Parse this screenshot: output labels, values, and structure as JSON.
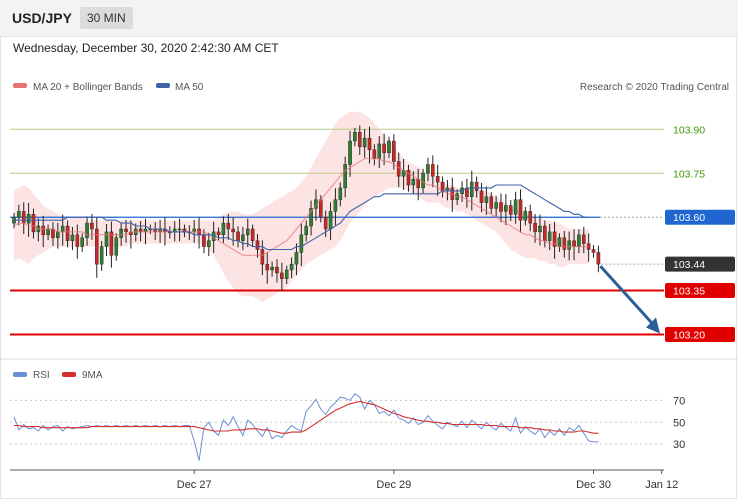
{
  "header": {
    "pair": "USD/JPY",
    "timeframe": "30 MIN",
    "datetime": "Wednesday, December 30, 2020 2:42:30 AM CET"
  },
  "legend": {
    "ma20_label": "MA 20 + Bollinger Bands",
    "ma50_label": "MA 50",
    "copyright": "Research © 2020 Trading Central",
    "rsi_label": "RSI",
    "rsi_ma_label": "9MA"
  },
  "colors": {
    "up": "#2e7d32",
    "down": "#c62828",
    "bollinger_fill": "#fde3e3",
    "ma20": "#e57373",
    "ma50": "#3f63a8",
    "pivot": "#1f66d1",
    "support": "#e00000",
    "resistance_line": "#b9c98a",
    "resistance_text": "#3f9a00",
    "last_price": "#333333",
    "arrow": "#2d5f96",
    "rsi": "#6b8fd6",
    "rsi_ma": "#d32f2f"
  },
  "chart_data": {
    "type": "candlestick",
    "y_range": [
      103.13,
      104.0
    ],
    "x_ticks": [
      {
        "label": "Dec 27",
        "index": 37
      },
      {
        "label": "Dec 29",
        "index": 78
      },
      {
        "label": "Dec 30",
        "index": 119
      },
      {
        "label": "Jan 12",
        "index": 133
      }
    ],
    "levels": [
      {
        "label": "103.90",
        "value": 103.9,
        "kind": "resistance"
      },
      {
        "label": "103.75",
        "value": 103.75,
        "kind": "resistance"
      },
      {
        "label": "103.60",
        "value": 103.6,
        "kind": "pivot"
      },
      {
        "label": "103.44",
        "value": 103.44,
        "kind": "last"
      },
      {
        "label": "103.35",
        "value": 103.35,
        "kind": "support"
      },
      {
        "label": "103.20",
        "value": 103.2,
        "kind": "support"
      }
    ],
    "forecast_arrow": {
      "from": {
        "index": 120,
        "value": 103.44
      },
      "to": {
        "index": 130,
        "value": 103.2
      }
    },
    "ohlc_closes": [
      103.6,
      103.62,
      103.58,
      103.61,
      103.55,
      103.57,
      103.54,
      103.56,
      103.53,
      103.55,
      103.57,
      103.52,
      103.54,
      103.5,
      103.53,
      103.58,
      103.56,
      103.44,
      103.5,
      103.55,
      103.47,
      103.53,
      103.56,
      103.55,
      103.54,
      103.56,
      103.55,
      103.56,
      103.56,
      103.55,
      103.56,
      103.55,
      103.55,
      103.56,
      103.56,
      103.55,
      103.55,
      103.56,
      103.54,
      103.5,
      103.52,
      103.55,
      103.54,
      103.58,
      103.56,
      103.55,
      103.52,
      103.54,
      103.56,
      103.52,
      103.49,
      103.44,
      103.42,
      103.43,
      103.41,
      103.39,
      103.42,
      103.44,
      103.48,
      103.54,
      103.57,
      103.63,
      103.66,
      103.6,
      103.56,
      103.62,
      103.66,
      103.7,
      103.78,
      103.86,
      103.89,
      103.84,
      103.87,
      103.83,
      103.8,
      103.85,
      103.82,
      103.86,
      103.79,
      103.74,
      103.76,
      103.71,
      103.73,
      103.7,
      103.75,
      103.78,
      103.74,
      103.72,
      103.69,
      103.7,
      103.66,
      103.68,
      103.7,
      103.67,
      103.72,
      103.69,
      103.65,
      103.67,
      103.63,
      103.65,
      103.62,
      103.64,
      103.61,
      103.66,
      103.59,
      103.62,
      103.58,
      103.55,
      103.57,
      103.52,
      103.55,
      103.5,
      103.53,
      103.49,
      103.52,
      103.5,
      103.54,
      103.51,
      103.49,
      103.48,
      103.44
    ],
    "ma20": [
      103.57,
      103.58,
      103.58,
      103.57,
      103.57,
      103.56,
      103.56,
      103.56,
      103.56,
      103.55,
      103.55,
      103.55,
      103.55,
      103.55,
      103.55,
      103.54,
      103.54,
      103.54,
      103.54,
      103.54,
      103.54,
      103.54,
      103.54,
      103.54,
      103.55,
      103.55,
      103.55,
      103.55,
      103.55,
      103.55,
      103.55,
      103.55,
      103.55,
      103.55,
      103.55,
      103.55,
      103.55,
      103.55,
      103.55,
      103.55,
      103.54,
      103.53,
      103.52,
      103.51,
      103.5,
      103.49,
      103.48,
      103.47,
      103.47,
      103.47,
      103.47,
      103.47,
      103.48,
      103.49,
      103.5,
      103.51,
      103.52,
      103.54,
      103.56,
      103.58,
      103.6,
      103.62,
      103.64,
      103.66,
      103.68,
      103.7,
      103.72,
      103.74,
      103.76,
      103.77,
      103.78,
      103.79,
      103.8,
      103.8,
      103.8,
      103.8,
      103.79,
      103.79,
      103.78,
      103.77,
      103.76,
      103.75,
      103.74,
      103.73,
      103.72,
      103.71,
      103.71,
      103.7,
      103.69,
      103.68,
      103.68,
      103.67,
      103.67,
      103.66,
      103.65,
      103.64,
      103.63,
      103.62,
      103.61,
      103.6,
      103.59,
      103.58,
      103.57,
      103.56,
      103.55,
      103.54,
      103.54,
      103.53,
      103.52,
      103.52,
      103.51,
      103.51,
      103.5,
      103.5,
      103.5,
      103.5,
      103.5,
      103.5,
      103.5
    ],
    "bb_upper": [
      103.69,
      103.7,
      103.71,
      103.7,
      103.68,
      103.66,
      103.64,
      103.63,
      103.62,
      103.61,
      103.6,
      103.6,
      103.6,
      103.6,
      103.6,
      103.59,
      103.59,
      103.59,
      103.59,
      103.59,
      103.59,
      103.59,
      103.59,
      103.59,
      103.59,
      103.59,
      103.59,
      103.59,
      103.59,
      103.59,
      103.59,
      103.59,
      103.59,
      103.59,
      103.59,
      103.59,
      103.59,
      103.59,
      103.59,
      103.59,
      103.59,
      103.59,
      103.6,
      103.61,
      103.62,
      103.62,
      103.62,
      103.61,
      103.61,
      103.61,
      103.62,
      103.63,
      103.64,
      103.65,
      103.66,
      103.67,
      103.68,
      103.69,
      103.7,
      103.72,
      103.74,
      103.77,
      103.8,
      103.83,
      103.86,
      103.89,
      103.92,
      103.94,
      103.95,
      103.96,
      103.96,
      103.96,
      103.95,
      103.94,
      103.92,
      103.9,
      103.88,
      103.86,
      103.84,
      103.82,
      103.8,
      103.79,
      103.78,
      103.77,
      103.76,
      103.75,
      103.74,
      103.73,
      103.72,
      103.71,
      103.71,
      103.7,
      103.7,
      103.69,
      103.69,
      103.69,
      103.69,
      103.69,
      103.68,
      103.67,
      103.66,
      103.65,
      103.64,
      103.63,
      103.62,
      103.61,
      103.61,
      103.6,
      103.6,
      103.59,
      103.59,
      103.58,
      103.58,
      103.57,
      103.56,
      103.56,
      103.56,
      103.56,
      103.56
    ],
    "bb_lower": [
      103.45,
      103.46,
      103.45,
      103.44,
      103.46,
      103.47,
      103.48,
      103.49,
      103.5,
      103.5,
      103.5,
      103.5,
      103.5,
      103.5,
      103.5,
      103.5,
      103.5,
      103.5,
      103.5,
      103.5,
      103.5,
      103.5,
      103.5,
      103.5,
      103.51,
      103.51,
      103.51,
      103.51,
      103.51,
      103.51,
      103.51,
      103.51,
      103.51,
      103.51,
      103.51,
      103.51,
      103.51,
      103.51,
      103.51,
      103.51,
      103.49,
      103.47,
      103.44,
      103.41,
      103.38,
      103.36,
      103.34,
      103.33,
      103.33,
      103.33,
      103.32,
      103.31,
      103.32,
      103.33,
      103.34,
      103.35,
      103.36,
      103.38,
      103.4,
      103.42,
      103.44,
      103.45,
      103.46,
      103.47,
      103.48,
      103.49,
      103.5,
      103.52,
      103.55,
      103.58,
      103.6,
      103.62,
      103.64,
      103.66,
      103.67,
      103.68,
      103.69,
      103.7,
      103.7,
      103.7,
      103.7,
      103.69,
      103.68,
      103.67,
      103.66,
      103.65,
      103.65,
      103.65,
      103.64,
      103.63,
      103.63,
      103.62,
      103.62,
      103.61,
      103.6,
      103.59,
      103.58,
      103.57,
      103.56,
      103.55,
      103.53,
      103.51,
      103.49,
      103.48,
      103.47,
      103.46,
      103.46,
      103.46,
      103.45,
      103.45,
      103.44,
      103.44,
      103.43,
      103.43,
      103.44,
      103.44,
      103.44,
      103.44,
      103.44
    ],
    "ma50": [
      103.59,
      103.59,
      103.59,
      103.59,
      103.59,
      103.59,
      103.59,
      103.59,
      103.59,
      103.59,
      103.59,
      103.6,
      103.6,
      103.6,
      103.6,
      103.6,
      103.6,
      103.6,
      103.6,
      103.59,
      103.59,
      103.59,
      103.58,
      103.58,
      103.58,
      103.57,
      103.57,
      103.57,
      103.56,
      103.56,
      103.56,
      103.56,
      103.55,
      103.55,
      103.55,
      103.55,
      103.55,
      103.54,
      103.54,
      103.54,
      103.54,
      103.54,
      103.53,
      103.53,
      103.53,
      103.52,
      103.52,
      103.51,
      103.51,
      103.5,
      103.5,
      103.5,
      103.49,
      103.49,
      103.49,
      103.49,
      103.49,
      103.49,
      103.5,
      103.5,
      103.51,
      103.52,
      103.53,
      103.54,
      103.55,
      103.56,
      103.57,
      103.58,
      103.6,
      103.62,
      103.63,
      103.64,
      103.65,
      103.66,
      103.67,
      103.67,
      103.68,
      103.68,
      103.68,
      103.68,
      103.68,
      103.68,
      103.68,
      103.68,
      103.68,
      103.68,
      103.68,
      103.68,
      103.69,
      103.69,
      103.69,
      103.69,
      103.69,
      103.7,
      103.7,
      103.7,
      103.7,
      103.7,
      103.7,
      103.71,
      103.71,
      103.71,
      103.71,
      103.71,
      103.71,
      103.7,
      103.69,
      103.68,
      103.67,
      103.66,
      103.65,
      103.64,
      103.63,
      103.62,
      103.62,
      103.61,
      103.61,
      103.6,
      103.6
    ],
    "rsi": {
      "y_ticks": [
        70,
        50,
        30
      ],
      "y_range": [
        10,
        85
      ],
      "values": [
        55,
        43,
        48,
        44,
        45,
        42,
        47,
        43,
        46,
        47,
        42,
        46,
        44,
        45,
        46,
        47,
        46,
        47,
        46,
        47,
        46,
        47,
        46,
        47,
        46,
        47,
        46,
        47,
        46,
        47,
        46,
        47,
        46,
        47,
        46,
        47,
        47,
        33,
        15,
        45,
        50,
        42,
        38,
        52,
        47,
        55,
        46,
        38,
        52,
        48,
        42,
        37,
        45,
        35,
        38,
        36,
        42,
        47,
        44,
        42,
        60,
        65,
        71,
        62,
        57,
        64,
        68,
        73,
        72,
        70,
        76,
        73,
        62,
        70,
        66,
        58,
        60,
        56,
        61,
        54,
        52,
        49,
        54,
        48,
        50,
        56,
        51,
        47,
        44,
        50,
        48,
        46,
        51,
        45,
        52,
        48,
        44,
        50,
        46,
        43,
        49,
        45,
        42,
        54,
        40,
        46,
        42,
        39,
        44,
        36,
        42,
        38,
        44,
        38,
        45,
        42,
        47,
        40,
        33,
        32,
        32
      ],
      "ma": [
        47,
        47,
        46,
        46,
        46,
        46,
        45,
        45,
        45,
        45,
        45,
        45,
        45,
        45,
        45,
        45,
        46,
        46,
        46,
        46,
        46,
        46,
        46,
        46,
        46,
        46,
        46,
        46,
        46,
        46,
        46,
        46,
        46,
        46,
        46,
        46,
        46,
        46,
        45,
        44,
        43,
        42,
        42,
        42,
        42,
        43,
        43,
        43,
        44,
        44,
        44,
        43,
        43,
        42,
        41,
        40,
        40,
        41,
        41,
        41,
        43,
        46,
        49,
        52,
        55,
        58,
        61,
        63,
        65,
        67,
        68,
        69,
        68,
        67,
        66,
        64,
        62,
        60,
        58,
        57,
        55,
        54,
        53,
        52,
        51,
        51,
        50,
        50,
        49,
        49,
        48,
        48,
        48,
        48,
        48,
        48,
        48,
        47,
        47,
        47,
        46,
        46,
        46,
        46,
        45,
        45,
        45,
        44,
        44,
        43,
        43,
        42,
        42,
        41,
        41,
        41,
        42,
        42,
        41,
        40,
        40
      ]
    }
  }
}
